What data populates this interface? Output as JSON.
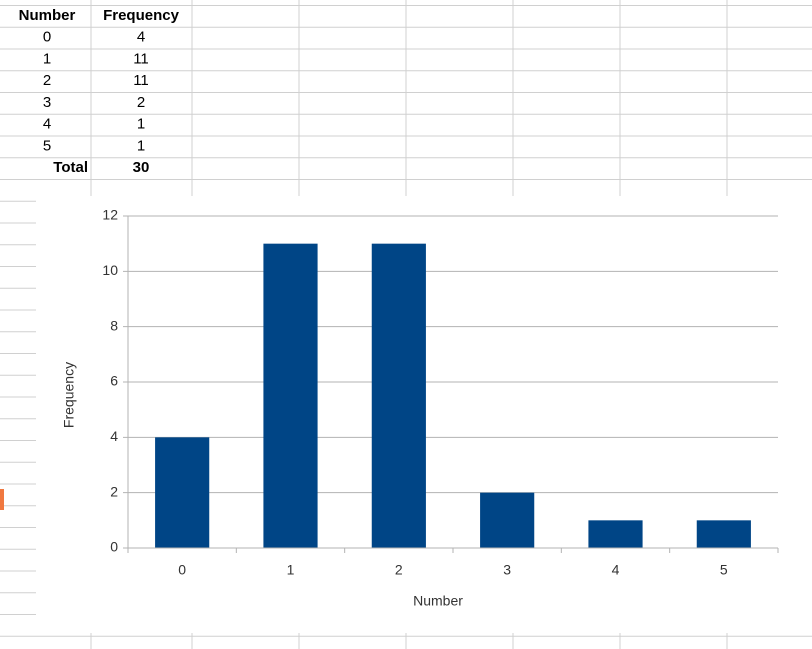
{
  "table": {
    "header": [
      "Number",
      "Frequency"
    ],
    "rows": [
      [
        0,
        4
      ],
      [
        1,
        11
      ],
      [
        2,
        11
      ],
      [
        3,
        2
      ],
      [
        4,
        1
      ],
      [
        5,
        1
      ]
    ],
    "total": [
      "Total",
      30
    ]
  },
  "chart_data": {
    "type": "bar",
    "categories": [
      "0",
      "1",
      "2",
      "3",
      "4",
      "5"
    ],
    "values": [
      4,
      11,
      11,
      2,
      1,
      1
    ],
    "color": "#004586",
    "ylim": [
      0,
      12
    ],
    "yticks": [
      0,
      2,
      4,
      6,
      8,
      10,
      12
    ],
    "grid": true,
    "xlabel": "Number",
    "ylabel": "Frequency"
  }
}
